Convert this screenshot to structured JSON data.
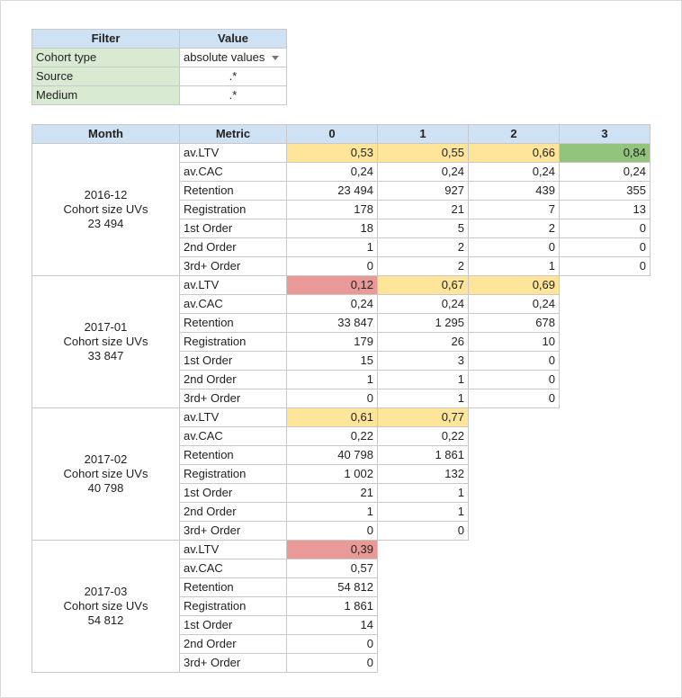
{
  "filter": {
    "header": {
      "filter": "Filter",
      "value": "Value"
    },
    "rows": [
      {
        "label": "Cohort type",
        "value": "absolute values",
        "dropdown": true
      },
      {
        "label": "Source",
        "value": ".*"
      },
      {
        "label": "Medium",
        "value": ".*"
      }
    ]
  },
  "cohort": {
    "headers": {
      "month": "Month",
      "metric": "Metric",
      "periods": [
        "0",
        "1",
        "2",
        "3"
      ]
    },
    "colors": {
      "yellow": "#ffe599",
      "red": "#ea9999",
      "green": "#93c47d",
      "header": "#cfe2f3",
      "filter_label": "#d9ead3"
    },
    "groups": [
      {
        "month": "2016-12",
        "size_label": "Cohort size UVs",
        "size": "23 494",
        "rows": [
          {
            "metric": "av.LTV",
            "values": [
              "0,53",
              "0,55",
              "0,66",
              "0,84"
            ],
            "highlight": [
              "yellow",
              "yellow",
              "yellow",
              "green"
            ]
          },
          {
            "metric": "av.CAC",
            "values": [
              "0,24",
              "0,24",
              "0,24",
              "0,24"
            ]
          },
          {
            "metric": "Retention",
            "values": [
              "23 494",
              "927",
              "439",
              "355"
            ]
          },
          {
            "metric": "Registration",
            "values": [
              "178",
              "21",
              "7",
              "13"
            ]
          },
          {
            "metric": "1st Order",
            "values": [
              "18",
              "5",
              "2",
              "0"
            ]
          },
          {
            "metric": "2nd Order",
            "values": [
              "1",
              "2",
              "0",
              "0"
            ]
          },
          {
            "metric": "3rd+ Order",
            "values": [
              "0",
              "2",
              "1",
              "0"
            ]
          }
        ]
      },
      {
        "month": "2017-01",
        "size_label": "Cohort size UVs",
        "size": "33 847",
        "rows": [
          {
            "metric": "av.LTV",
            "values": [
              "0,12",
              "0,67",
              "0,69"
            ],
            "highlight": [
              "red",
              "yellow",
              "yellow"
            ]
          },
          {
            "metric": "av.CAC",
            "values": [
              "0,24",
              "0,24",
              "0,24"
            ]
          },
          {
            "metric": "Retention",
            "values": [
              "33 847",
              "1 295",
              "678"
            ]
          },
          {
            "metric": "Registration",
            "values": [
              "179",
              "26",
              "10"
            ]
          },
          {
            "metric": "1st Order",
            "values": [
              "15",
              "3",
              "0"
            ]
          },
          {
            "metric": "2nd Order",
            "values": [
              "1",
              "1",
              "0"
            ]
          },
          {
            "metric": "3rd+ Order",
            "values": [
              "0",
              "1",
              "0"
            ]
          }
        ]
      },
      {
        "month": "2017-02",
        "size_label": "Cohort size UVs",
        "size": "40 798",
        "rows": [
          {
            "metric": "av.LTV",
            "values": [
              "0,61",
              "0,77"
            ],
            "highlight": [
              "yellow",
              "yellow"
            ]
          },
          {
            "metric": "av.CAC",
            "values": [
              "0,22",
              "0,22"
            ]
          },
          {
            "metric": "Retention",
            "values": [
              "40 798",
              "1 861"
            ]
          },
          {
            "metric": "Registration",
            "values": [
              "1 002",
              "132"
            ]
          },
          {
            "metric": "1st Order",
            "values": [
              "21",
              "1"
            ]
          },
          {
            "metric": "2nd Order",
            "values": [
              "1",
              "1"
            ]
          },
          {
            "metric": "3rd+ Order",
            "values": [
              "0",
              "0"
            ]
          }
        ]
      },
      {
        "month": "2017-03",
        "size_label": "Cohort size UVs",
        "size": "54 812",
        "rows": [
          {
            "metric": "av.LTV",
            "values": [
              "0,39"
            ],
            "highlight": [
              "red"
            ]
          },
          {
            "metric": "av.CAC",
            "values": [
              "0,57"
            ]
          },
          {
            "metric": "Retention",
            "values": [
              "54 812"
            ]
          },
          {
            "metric": "Registration",
            "values": [
              "1 861"
            ]
          },
          {
            "metric": "1st Order",
            "values": [
              "14"
            ]
          },
          {
            "metric": "2nd Order",
            "values": [
              "0"
            ]
          },
          {
            "metric": "3rd+ Order",
            "values": [
              "0"
            ]
          }
        ]
      }
    ]
  }
}
